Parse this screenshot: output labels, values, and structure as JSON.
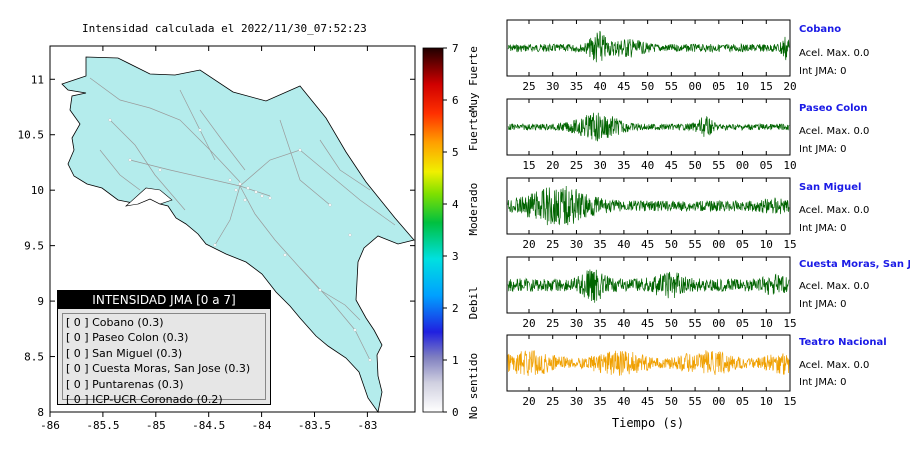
{
  "title": "Intensidad calculada el 2022/11/30_07:52:23",
  "map": {
    "x_ticks": [
      "-86",
      "-85.5",
      "-85",
      "-84.5",
      "-84",
      "-83.5",
      "-83"
    ],
    "x_values": [
      -86,
      -85.5,
      -85,
      -84.5,
      -84,
      -83.5,
      -83
    ],
    "y_ticks": [
      "8",
      "8.5",
      "9",
      "9.5",
      "10",
      "10.5",
      "11"
    ],
    "y_values": [
      8,
      8.5,
      9,
      9.5,
      10,
      10.5,
      11
    ],
    "lon_range": [
      -86,
      -82.55
    ],
    "lat_range": [
      8,
      11.3
    ],
    "land_color": "#b4ecec"
  },
  "colorbar": {
    "ticks": [
      "0",
      "1",
      "2",
      "3",
      "4",
      "5",
      "6",
      "7"
    ],
    "range": [
      0,
      7
    ],
    "labels": [
      "No sentido",
      "Debil",
      "Moderado",
      "Fuerte",
      "Muy Fuerte"
    ]
  },
  "legend": {
    "title": "INTENSIDAD JMA [0 a 7]",
    "entries": [
      "[ 0 ] Cobano (0.3)",
      "[ 0 ] Paseo Colon (0.3)",
      "[ 0 ] San Miguel (0.3)",
      "[ 0 ] Cuesta Moras, San Jose (0.3)",
      "[ 0 ] Puntarenas (0.3)",
      "[ 0 ] ICP-UCR Coronado (0.2)"
    ]
  },
  "xlabel": "Tiempo (s)",
  "chart_data": {
    "type": "line",
    "panels": [
      {
        "name": "Cobano",
        "acel": "Acel. Max. 0.0",
        "int": "Int JMA: 0",
        "color": "#006400",
        "ticks": [
          "25",
          "30",
          "35",
          "40",
          "45",
          "50",
          "55",
          "00",
          "05",
          "10",
          "15",
          "20"
        ]
      },
      {
        "name": "Paseo Colon",
        "acel": "Acel. Max. 0.0",
        "int": "Int JMA: 0",
        "color": "#006400",
        "ticks": [
          "15",
          "20",
          "25",
          "30",
          "35",
          "40",
          "45",
          "50",
          "55",
          "00",
          "05",
          "10"
        ]
      },
      {
        "name": "San Miguel",
        "acel": "Acel. Max. 0.0",
        "int": "Int JMA: 0",
        "color": "#006400",
        "ticks": [
          "20",
          "25",
          "30",
          "35",
          "40",
          "45",
          "50",
          "55",
          "00",
          "05",
          "10",
          "15"
        ]
      },
      {
        "name": "Cuesta Moras, San Jose",
        "acel": "Acel. Max. 0.0",
        "int": "Int JMA: 0",
        "color": "#006400",
        "ticks": [
          "20",
          "25",
          "30",
          "35",
          "40",
          "45",
          "50",
          "55",
          "00",
          "05",
          "10",
          "15"
        ]
      },
      {
        "name": "Teatro Nacional",
        "acel": "Acel. Max. 0.0",
        "int": "Int JMA: 0",
        "color": "#f0a000",
        "ticks": [
          "20",
          "25",
          "30",
          "35",
          "40",
          "45",
          "50",
          "55",
          "00",
          "05",
          "10",
          "15"
        ]
      }
    ]
  }
}
